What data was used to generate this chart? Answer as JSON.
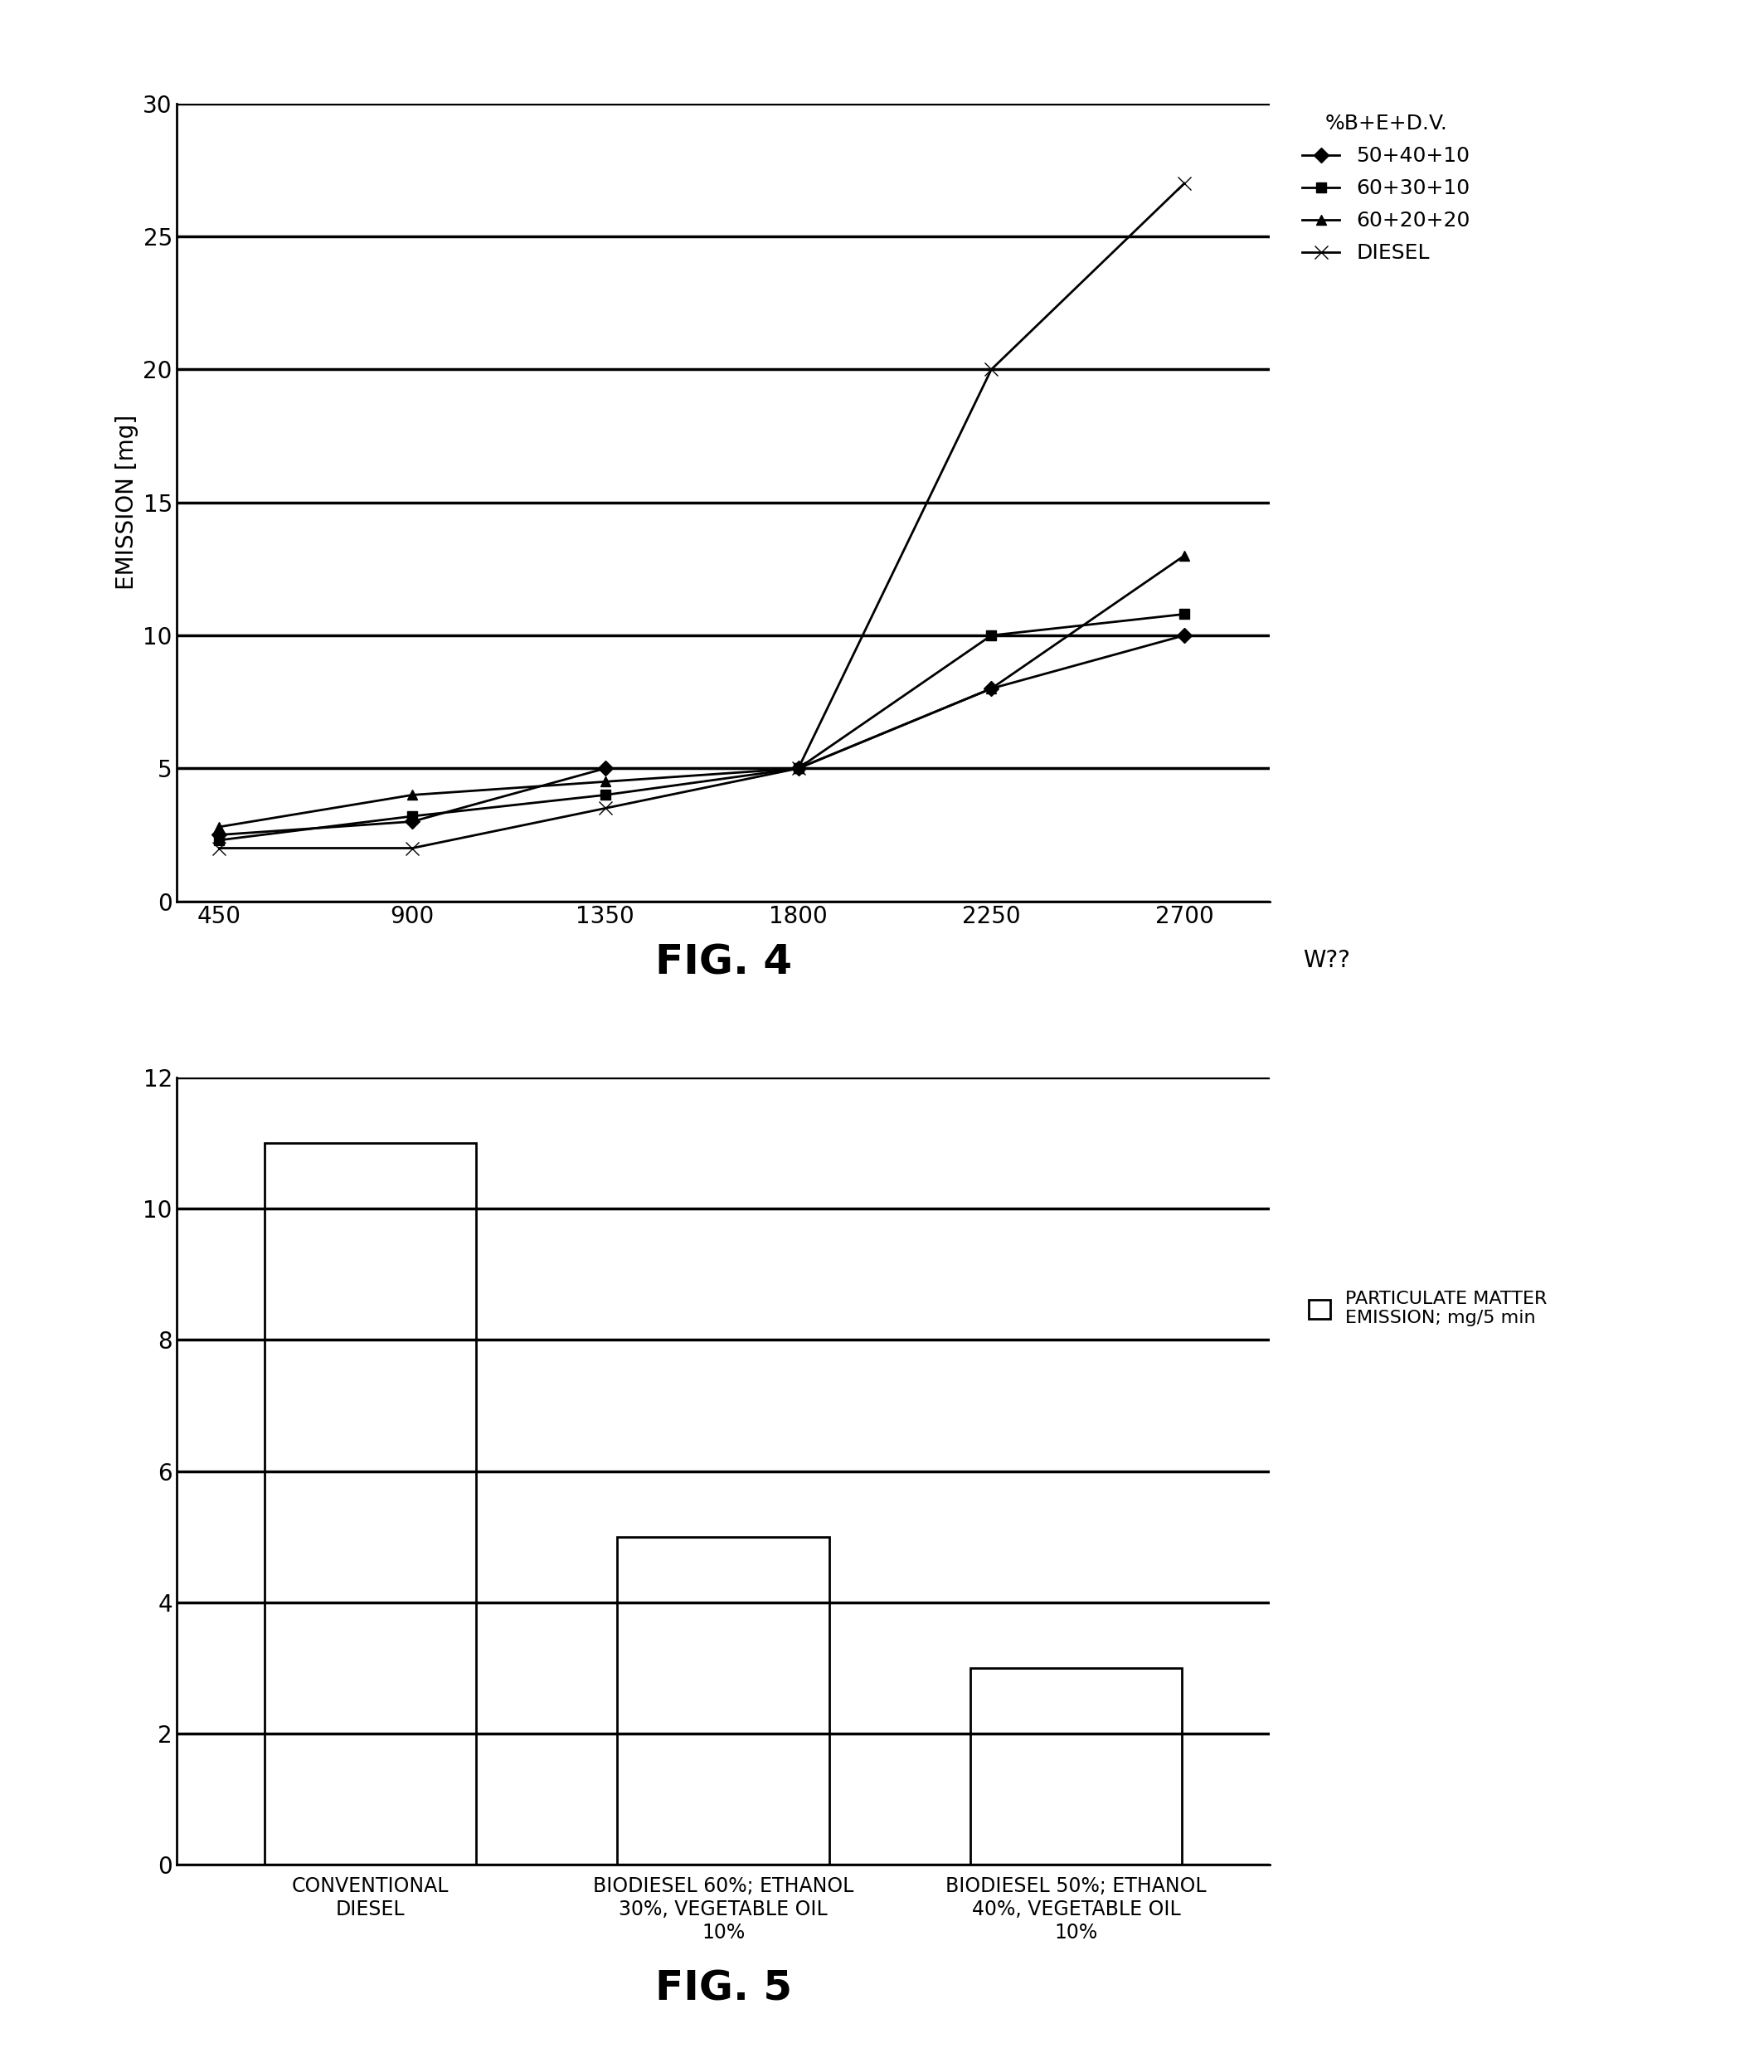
{
  "fig4": {
    "x": [
      450,
      900,
      1350,
      1800,
      2250,
      2700
    ],
    "series": [
      {
        "label": "50+40+10",
        "y": [
          2.5,
          3.0,
          5.0,
          5.0,
          8.0,
          10.0
        ],
        "marker": "D",
        "linestyle": "-"
      },
      {
        "label": "60+30+10",
        "y": [
          2.3,
          3.2,
          4.0,
          5.0,
          10.0,
          10.8
        ],
        "marker": "s",
        "linestyle": "-"
      },
      {
        "label": "60+20+20",
        "y": [
          2.8,
          4.0,
          4.5,
          5.0,
          8.0,
          13.0
        ],
        "marker": "^",
        "linestyle": "-"
      },
      {
        "label": "DIESEL",
        "y": [
          2.0,
          2.0,
          3.5,
          5.0,
          20.0,
          27.0
        ],
        "marker": "x",
        "linestyle": "-"
      }
    ],
    "ylabel": "EMISSION [mg]",
    "xlabel": "W??",
    "xlim": [
      350,
      2900
    ],
    "ylim": [
      0,
      30
    ],
    "yticks": [
      0,
      5,
      10,
      15,
      20,
      25,
      30
    ],
    "xticks": [
      450,
      900,
      1350,
      1800,
      2250,
      2700
    ],
    "legend_title": "%B+E+D.V.",
    "fig_label": "FIG. 4"
  },
  "fig5": {
    "categories": [
      "CONVENTIONAL\nDIESEL",
      "BIODIESEL 60%; ETHANOL\n30%, VEGETABLE OIL\n10%",
      "BIODIESEL 50%; ETHANOL\n40%, VEGETABLE OIL\n10%"
    ],
    "values": [
      11.0,
      5.0,
      3.0
    ],
    "bar_color": "#ffffff",
    "bar_edge_color": "#000000",
    "ylim": [
      0,
      12
    ],
    "yticks": [
      0,
      2,
      4,
      6,
      8,
      10,
      12
    ],
    "legend_label": "PARTICULATE MATTER\nEMISSION; mg/5 min",
    "fig_label": "FIG. 5"
  },
  "background_color": "#ffffff",
  "line_color": "#000000",
  "tick_fontsize": 20,
  "label_fontsize": 20,
  "legend_fontsize": 18,
  "fig_label_fontsize": 36
}
